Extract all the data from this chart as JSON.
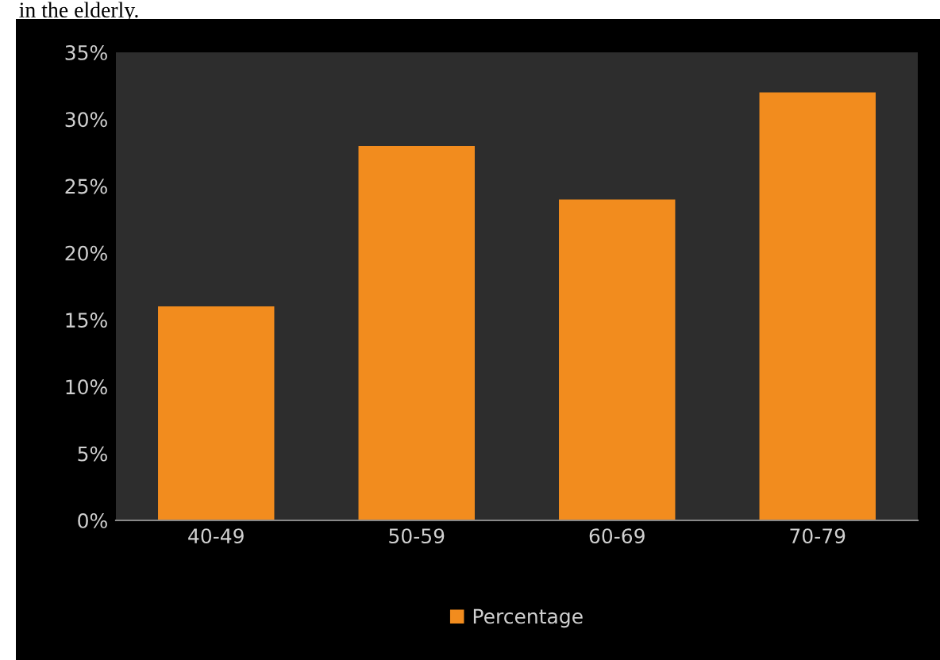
{
  "chart_data": {
    "type": "bar",
    "annotations": [
      "in the elderly."
    ],
    "categories": [
      "40-49",
      "50-59",
      "60-69",
      "70-79"
    ],
    "series": [
      {
        "name": "Percentage",
        "color": "#f28c1e",
        "values": [
          16,
          28,
          24,
          32
        ]
      }
    ],
    "ylim": [
      0,
      35
    ],
    "yticks": [
      {
        "value": 0,
        "label": "0%"
      },
      {
        "value": 5,
        "label": "5%"
      },
      {
        "value": 10,
        "label": "10%"
      },
      {
        "value": 15,
        "label": "15%"
      },
      {
        "value": 20,
        "label": "20%"
      },
      {
        "value": 25,
        "label": "25%"
      },
      {
        "value": 30,
        "label": "30%"
      },
      {
        "value": 35,
        "label": "35%"
      }
    ],
    "grid": false,
    "legend": "bottom"
  }
}
